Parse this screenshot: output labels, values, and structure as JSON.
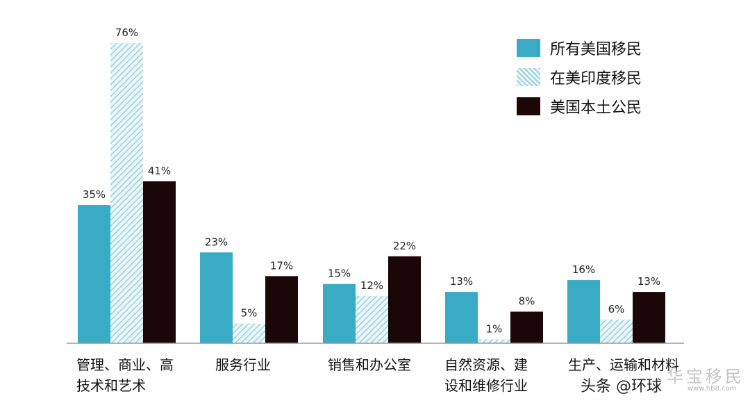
{
  "chart_data": {
    "type": "bar",
    "categories": [
      "管理、商业、高\n技术和艺术",
      "服务行业",
      "销售和办公室",
      "自然资源、建\n设和维修行业",
      "生产、运输和材料"
    ],
    "series": [
      {
        "name": "所有美国移民",
        "values": [
          35,
          23,
          15,
          13,
          16
        ],
        "labels": [
          "35%",
          "23%",
          "15%",
          "13%",
          "16%"
        ],
        "color": "#3aabc4",
        "pattern": "solid"
      },
      {
        "name": "在美印度移民",
        "values": [
          76,
          5,
          12,
          1,
          6
        ],
        "labels": [
          "76%",
          "5%",
          "12%",
          "1%",
          "6%"
        ],
        "color": "#a9dbe2",
        "pattern": "hatch"
      },
      {
        "name": "美国本土公民",
        "values": [
          41,
          17,
          22,
          8,
          13
        ],
        "labels": [
          "41%",
          "17%",
          "22%",
          "8%",
          "13%"
        ],
        "color": "#1b0608",
        "pattern": "solid"
      }
    ],
    "ylim": [
      0,
      80
    ],
    "legend_position": "top-right",
    "grid": false
  },
  "watermark": {
    "text": "头条 @环球",
    "stamp": "华宝移民",
    "url": "www.hb8.com"
  }
}
